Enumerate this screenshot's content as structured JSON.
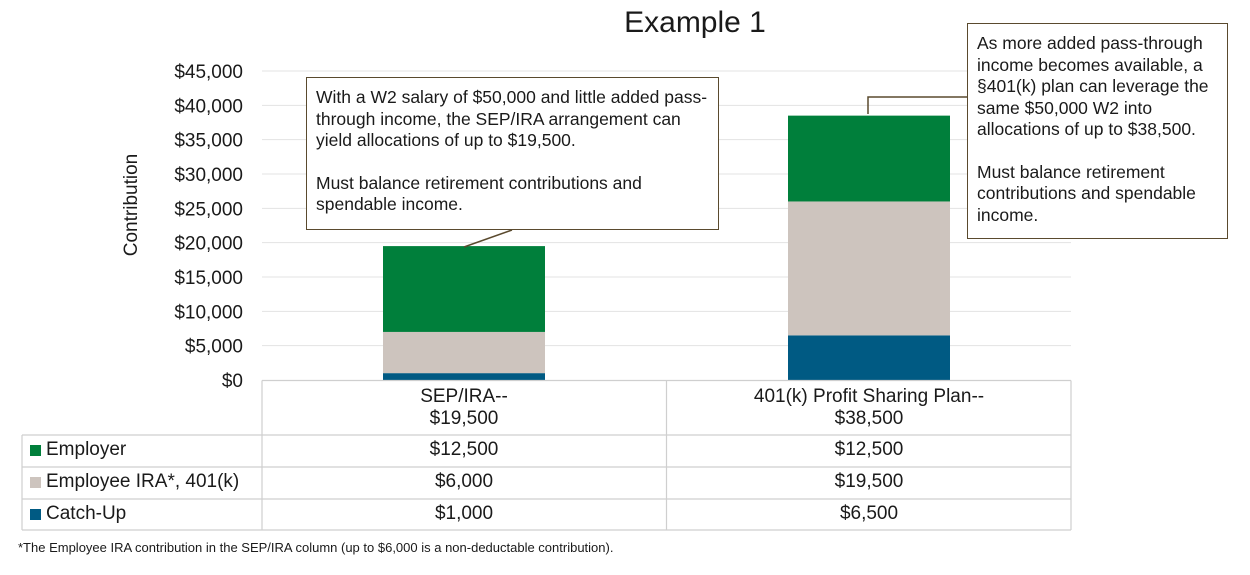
{
  "chart_data": {
    "type": "bar",
    "stacked": true,
    "title": "Example 1",
    "ylabel": "Contribution",
    "ylim": [
      0,
      45000
    ],
    "yticks": [
      "$0",
      "$5,000",
      "$10,000",
      "$15,000",
      "$20,000",
      "$25,000",
      "$30,000",
      "$35,000",
      "$40,000",
      "$45,000"
    ],
    "categories": [
      {
        "line1": "SEP/IRA--",
        "line2": "$19,500"
      },
      {
        "line1": "401(k) Profit Sharing Plan--",
        "line2": "$38,500"
      }
    ],
    "series": [
      {
        "name": "Catch-Up",
        "color": "#005a83",
        "values": [
          1000,
          6500
        ],
        "labels": [
          "$1,000",
          "$6,500"
        ]
      },
      {
        "name": "Employee IRA*, 401(k)",
        "color": "#cdc4be",
        "values": [
          6000,
          19500
        ],
        "labels": [
          "$6,000",
          "$19,500"
        ]
      },
      {
        "name": "Employer",
        "color": "#007f3b",
        "values": [
          12500,
          12500
        ],
        "labels": [
          "$12,500",
          "$12,500"
        ]
      }
    ],
    "grid": true,
    "data_table": true
  },
  "annotations": {
    "left": {
      "p1": "With a W2 salary of $50,000 and little added pass-through income, the SEP/IRA arrangement can yield allocations of up to $19,500.",
      "p2": "Must balance retirement contributions and spendable income."
    },
    "right": {
      "p1": "As more added pass-through income becomes available, a §401(k) plan can leverage the same $50,000 W2 into allocations of up to $38,500.",
      "p2": "Must balance retirement contributions and spendable income."
    }
  },
  "footnote": "*The Employee IRA contribution in the SEP/IRA column (up to $6,000 is a non-deductable contribution)."
}
